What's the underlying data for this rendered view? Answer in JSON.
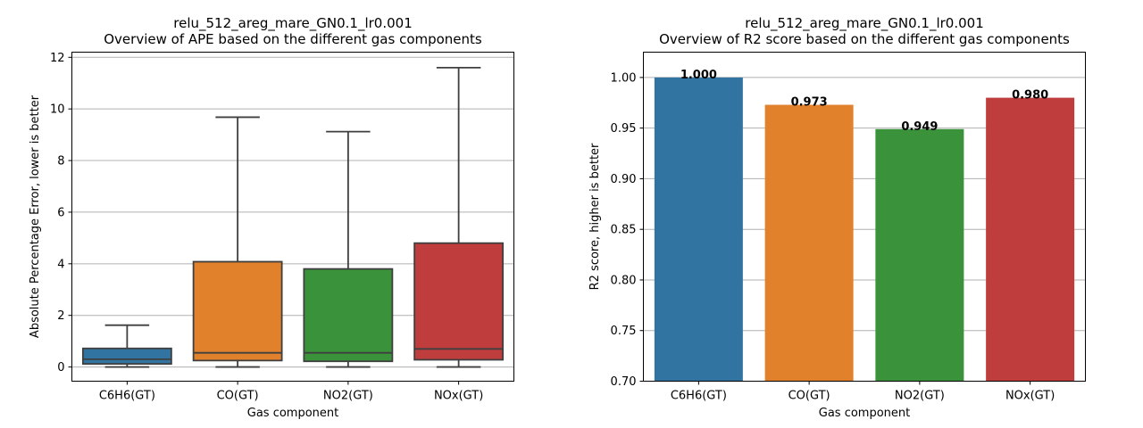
{
  "chart_data": [
    {
      "type": "box",
      "title": "relu_512_areg_mare_GN0.1_lr0.001",
      "subtitle": "Overview of APE based on the different gas components",
      "xlabel": "Gas component",
      "ylabel": "Absolute Percentage Error, lower is better",
      "ylim": [
        -0.55,
        12.2
      ],
      "yticks": [
        "0",
        "2",
        "4",
        "6",
        "8",
        "10",
        "12"
      ],
      "ytick_values": [
        0,
        2,
        4,
        6,
        8,
        10,
        12
      ],
      "grid": "y",
      "categories": [
        "C6H6(GT)",
        "CO(GT)",
        "NO2(GT)",
        "NOx(GT)"
      ],
      "boxes": [
        {
          "whislo": 0.0,
          "q1": 0.12,
          "med": 0.3,
          "q3": 0.72,
          "whishi": 1.62
        },
        {
          "whislo": 0.0,
          "q1": 0.25,
          "med": 0.55,
          "q3": 4.08,
          "whishi": 9.68
        },
        {
          "whislo": 0.0,
          "q1": 0.22,
          "med": 0.55,
          "q3": 3.8,
          "whishi": 9.12
        },
        {
          "whislo": 0.0,
          "q1": 0.28,
          "med": 0.7,
          "q3": 4.8,
          "whishi": 11.6
        }
      ],
      "colors": [
        "#3274a1",
        "#e1812c",
        "#3a923a",
        "#c03d3e"
      ]
    },
    {
      "type": "bar",
      "title": "relu_512_areg_mare_GN0.1_lr0.001",
      "subtitle": "Overview of R2 score based on the different gas components",
      "xlabel": "Gas component",
      "ylabel": "R2 score, higher is better",
      "ylim": [
        0.7,
        1.025
      ],
      "yticks": [
        "0.70",
        "0.75",
        "0.80",
        "0.85",
        "0.90",
        "0.95",
        "1.00"
      ],
      "ytick_values": [
        0.7,
        0.75,
        0.8,
        0.85,
        0.9,
        0.95,
        1.0
      ],
      "grid": "y",
      "categories": [
        "C6H6(GT)",
        "CO(GT)",
        "NO2(GT)",
        "NOx(GT)"
      ],
      "values": [
        1.0,
        0.973,
        0.949,
        0.98
      ],
      "value_labels": [
        "1.000",
        "0.973",
        "0.949",
        "0.980"
      ],
      "colors": [
        "#3274a1",
        "#e1812c",
        "#3a923a",
        "#c03d3e"
      ]
    }
  ]
}
